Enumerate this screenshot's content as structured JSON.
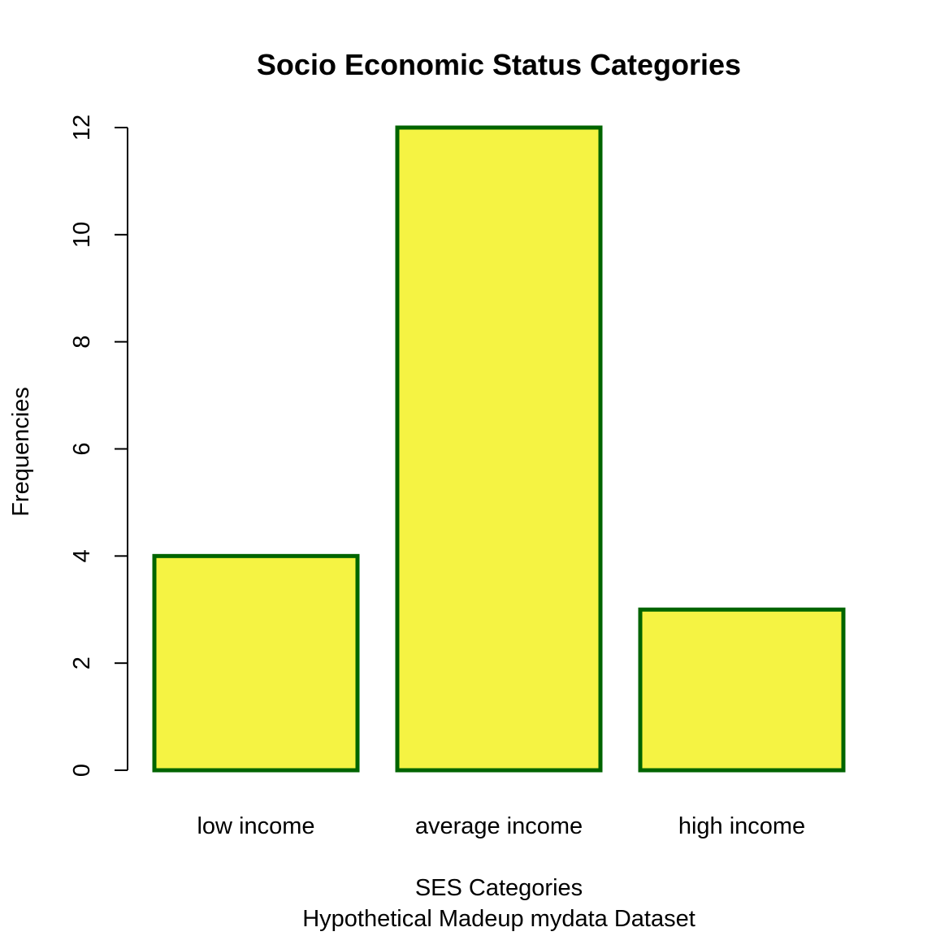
{
  "chart_data": {
    "type": "bar",
    "title": "Socio Economic Status Categories",
    "xlabel": "SES Categories",
    "subtitle": "Hypothetical Madeup mydata Dataset",
    "ylabel": "Frequencies",
    "categories": [
      "low income",
      "average income",
      "high income"
    ],
    "values": [
      4,
      12,
      3
    ],
    "ylim": [
      0,
      12
    ],
    "yticks": [
      0,
      2,
      4,
      6,
      8,
      10,
      12
    ],
    "grid": false,
    "bar_fill": "#F5F343",
    "bar_border": "#006400"
  }
}
